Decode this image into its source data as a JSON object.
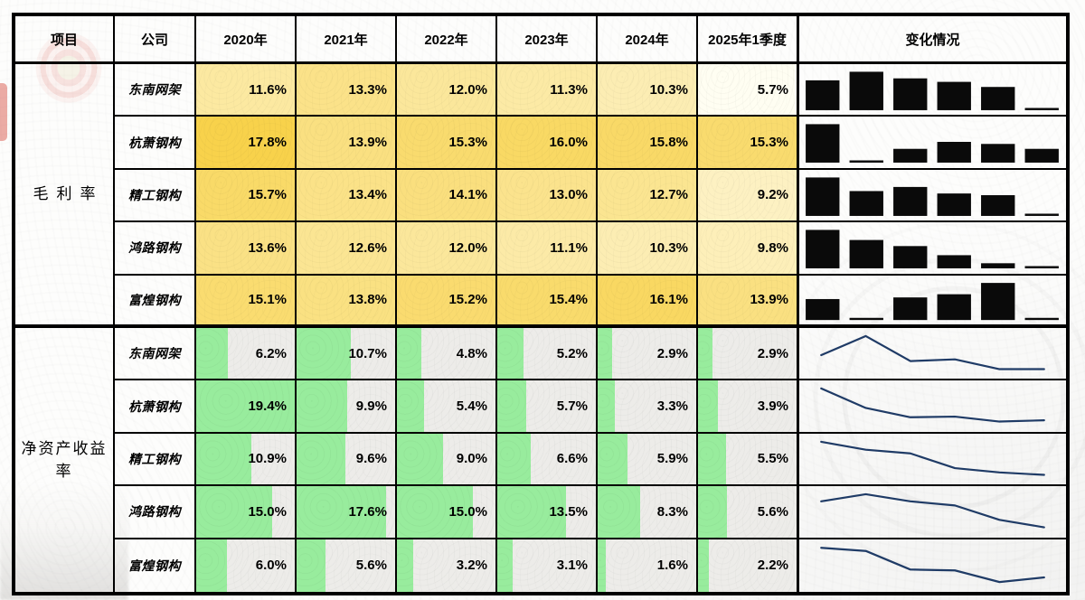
{
  "table": {
    "header": {
      "item": "项目",
      "company": "公司",
      "years": [
        "2020年",
        "2021年",
        "2022年",
        "2023年",
        "2024年",
        "2025年1季度"
      ],
      "change": "变化情况"
    },
    "sections": [
      {
        "label": "毛利率",
        "row_style": "yellow_color_scale",
        "sparkline_style": "black_columns",
        "color_scale": {
          "low_value": 5.7,
          "high_value": 17.8,
          "low_color": "#FFFEF2",
          "high_color": "#F8D24B"
        }
      },
      {
        "label": "净资产收益率",
        "row_style": "green_data_bar",
        "sparkline_style": "navy_line",
        "data_bar": {
          "max": 19.4,
          "color": "#98EC9D",
          "cell_bg": "#EDECE9"
        }
      }
    ]
  },
  "colors": {
    "border": "#000000",
    "spark_bar": "#0A0A0A",
    "spark_line": "#1F3B66",
    "value_text": "#000000"
  },
  "chart_data": {
    "type": "table",
    "columns": [
      "项目",
      "公司",
      "2020年",
      "2021年",
      "2022年",
      "2023年",
      "2024年",
      "2025年1季度",
      "变化情况"
    ],
    "unit": "%",
    "groups": [
      {
        "metric": "毛利率",
        "sparkline_type": "bar",
        "x": [
          "2020年",
          "2021年",
          "2022年",
          "2023年",
          "2024年",
          "2025年1季度"
        ],
        "series": [
          {
            "name": "东南网架",
            "values": [
              11.6,
              13.3,
              12.0,
              11.3,
              10.3,
              5.7
            ]
          },
          {
            "name": "杭萧钢构",
            "values": [
              17.8,
              13.9,
              15.3,
              16.0,
              15.8,
              15.3
            ]
          },
          {
            "name": "精工钢构",
            "values": [
              15.7,
              13.4,
              14.1,
              13.0,
              12.7,
              9.2
            ]
          },
          {
            "name": "鸿路钢构",
            "values": [
              13.6,
              12.6,
              12.0,
              11.1,
              10.3,
              9.8
            ]
          },
          {
            "name": "富煌钢构",
            "values": [
              15.1,
              13.8,
              15.2,
              15.4,
              16.1,
              13.9
            ]
          }
        ]
      },
      {
        "metric": "净资产收益率",
        "sparkline_type": "line",
        "x": [
          "2020年",
          "2021年",
          "2022年",
          "2023年",
          "2024年",
          "2025年1季度"
        ],
        "series": [
          {
            "name": "东南网架",
            "values": [
              6.2,
              10.7,
              4.8,
              5.2,
              2.9,
              2.9
            ]
          },
          {
            "name": "杭萧钢构",
            "values": [
              19.4,
              9.9,
              5.4,
              5.7,
              3.3,
              3.9
            ]
          },
          {
            "name": "精工钢构",
            "values": [
              10.9,
              9.6,
              9.0,
              6.6,
              5.9,
              5.5
            ]
          },
          {
            "name": "鸿路钢构",
            "values": [
              15.0,
              17.6,
              15.0,
              13.5,
              8.3,
              5.6
            ]
          },
          {
            "name": "富煌钢构",
            "values": [
              6.0,
              5.6,
              3.2,
              3.1,
              1.6,
              2.2
            ]
          }
        ]
      }
    ]
  }
}
